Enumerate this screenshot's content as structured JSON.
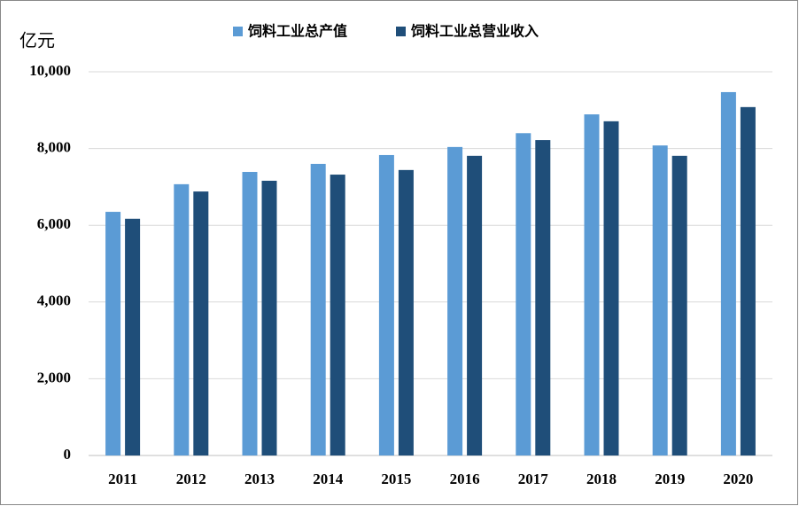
{
  "chart_data": {
    "type": "bar",
    "y_unit": "亿元",
    "categories": [
      "2011",
      "2012",
      "2013",
      "2014",
      "2015",
      "2016",
      "2017",
      "2018",
      "2019",
      "2020"
    ],
    "series": [
      {
        "name": "饲料工业总产值",
        "color": "#5b9bd5",
        "values": [
          6350,
          7070,
          7390,
          7600,
          7830,
          8040,
          8400,
          8890,
          8080,
          9470
        ]
      },
      {
        "name": "饲料工业总营业收入",
        "color": "#1f4e79",
        "values": [
          6170,
          6880,
          7160,
          7320,
          7440,
          7810,
          8220,
          8710,
          7810,
          9080
        ]
      }
    ],
    "ylim": [
      0,
      10000
    ],
    "yticks": [
      0,
      {
        "value": 2000,
        "label": "2,000"
      },
      {
        "value": 4000,
        "label": "4,000"
      },
      {
        "value": 6000,
        "label": "6,000"
      },
      {
        "value": 8000,
        "label": "8,000"
      },
      {
        "value": 10000,
        "label": "10,000"
      }
    ],
    "grid": true,
    "legend": "top"
  }
}
